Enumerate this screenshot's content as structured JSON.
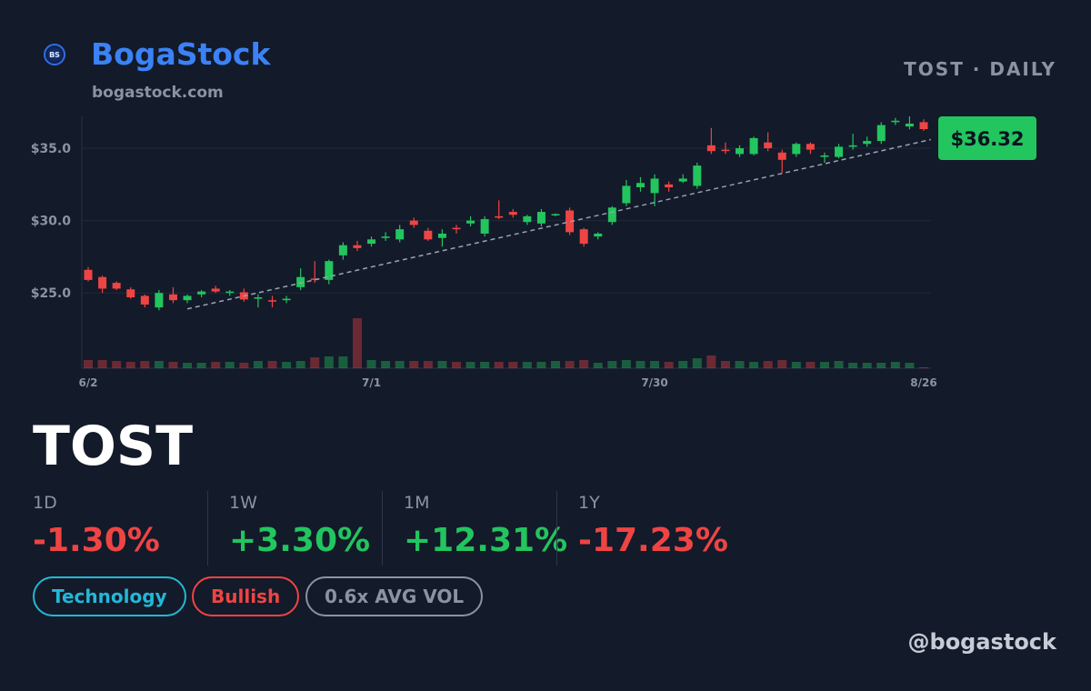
{
  "header": {
    "logo": "BS",
    "brand": "BogaStock",
    "url": "bogastock.com"
  },
  "chart_data": {
    "type": "candlestick",
    "title": "TOST · DAILY",
    "categories": [
      "6/2",
      null,
      null,
      null,
      null,
      null,
      null,
      null,
      null,
      null,
      null,
      null,
      null,
      null,
      null,
      null,
      null,
      null,
      null,
      null,
      "7/1",
      null,
      null,
      null,
      null,
      null,
      null,
      null,
      null,
      null,
      null,
      null,
      null,
      null,
      null,
      null,
      null,
      null,
      null,
      null,
      "7/30",
      null,
      null,
      null,
      null,
      null,
      null,
      null,
      null,
      null,
      null,
      null,
      null,
      null,
      null,
      null,
      null,
      null,
      null,
      "8/26"
    ],
    "open": [
      26.6,
      26.1,
      25.7,
      25.25,
      24.8,
      24.0,
      24.9,
      24.5,
      24.9,
      25.3,
      25.0,
      25.05,
      24.6,
      24.5,
      24.5,
      25.4,
      26.0,
      25.9,
      27.6,
      28.3,
      28.4,
      28.8,
      28.7,
      30.0,
      29.3,
      28.8,
      29.5,
      29.8,
      29.1,
      30.3,
      30.6,
      29.9,
      29.8,
      30.4,
      30.7,
      29.4,
      28.9,
      29.9,
      31.2,
      32.3,
      31.9,
      32.5,
      32.7,
      32.4,
      35.2,
      34.9,
      34.6,
      34.6,
      35.4,
      34.7,
      34.6,
      35.3,
      34.4,
      34.4,
      35.1,
      35.3,
      35.5,
      36.8,
      36.5,
      36.8
    ],
    "high": [
      26.8,
      26.2,
      25.8,
      25.4,
      24.9,
      25.2,
      25.4,
      24.9,
      25.2,
      25.5,
      25.2,
      25.3,
      24.9,
      24.8,
      24.8,
      26.7,
      27.2,
      27.3,
      28.5,
      28.6,
      28.9,
      29.2,
      29.7,
      30.2,
      29.5,
      29.4,
      29.7,
      30.3,
      30.3,
      31.4,
      30.8,
      30.4,
      30.8,
      30.5,
      30.9,
      29.5,
      29.2,
      31.0,
      32.8,
      33.0,
      33.2,
      32.7,
      33.2,
      34.0,
      36.4,
      35.4,
      35.2,
      35.8,
      36.1,
      34.9,
      35.4,
      35.4,
      34.7,
      35.3,
      36.0,
      35.8,
      36.8,
      37.1,
      37.2,
      37.0
    ],
    "low": [
      25.8,
      25.0,
      25.2,
      24.6,
      24.0,
      23.8,
      24.3,
      24.3,
      24.7,
      25.0,
      24.8,
      24.4,
      24.0,
      24.0,
      24.3,
      25.2,
      25.7,
      25.6,
      27.3,
      27.9,
      28.2,
      28.6,
      28.5,
      29.5,
      28.6,
      28.2,
      29.1,
      29.6,
      28.9,
      30.1,
      30.2,
      29.7,
      29.6,
      30.3,
      29.0,
      28.2,
      28.7,
      29.7,
      31.0,
      32.0,
      31.0,
      32.0,
      32.6,
      32.2,
      34.6,
      34.6,
      34.4,
      34.5,
      34.8,
      33.3,
      34.4,
      34.6,
      34.0,
      34.3,
      34.9,
      35.1,
      35.3,
      36.6,
      36.3,
      36.2
    ],
    "close": [
      25.9,
      25.3,
      25.3,
      24.7,
      24.2,
      25.0,
      24.5,
      24.8,
      25.1,
      25.1,
      25.1,
      24.55,
      24.7,
      24.4,
      24.6,
      26.1,
      25.9,
      27.2,
      28.3,
      28.1,
      28.7,
      28.9,
      29.4,
      29.7,
      28.7,
      29.1,
      29.4,
      30.0,
      30.1,
      30.2,
      30.4,
      30.3,
      30.6,
      30.45,
      29.2,
      28.4,
      29.1,
      30.9,
      32.4,
      32.6,
      32.9,
      32.3,
      32.9,
      33.8,
      34.8,
      34.8,
      35.0,
      35.7,
      35.0,
      34.2,
      35.3,
      34.9,
      34.5,
      35.1,
      35.2,
      35.5,
      36.6,
      36.9,
      36.7,
      36.32
    ],
    "volume": [
      9,
      9,
      8,
      7,
      8,
      8,
      7,
      6,
      6,
      7,
      7,
      6,
      8,
      8,
      7,
      8,
      12,
      13,
      13,
      55,
      9,
      8,
      8,
      8,
      8,
      8,
      7,
      7,
      7,
      7,
      7,
      7,
      7,
      8,
      8,
      9,
      6,
      8,
      9,
      8,
      8,
      7,
      8,
      11,
      14,
      8,
      8,
      7,
      8,
      9,
      7,
      7,
      7,
      8,
      6,
      6,
      6,
      7,
      6,
      1
    ],
    "up_color": "#22c55e",
    "down_color": "#ef4444",
    "ylim": [
      19.8,
      37.2
    ],
    "yticks": [
      {
        "value": 25,
        "label": "$25.0"
      },
      {
        "value": 30,
        "label": "$30.0"
      },
      {
        "value": 35,
        "label": "$35.0"
      }
    ],
    "grid": true,
    "trendline": [
      {
        "index": 7,
        "value": 23.9
      },
      {
        "index": 59.5,
        "value": 35.6
      }
    ],
    "last_price": {
      "value": 36.32,
      "label": "$36.32"
    }
  },
  "ticker": "TOST",
  "stats": [
    {
      "period": "1D",
      "change": "-1.30%",
      "color": "#ef4444"
    },
    {
      "period": "1W",
      "change": "+3.30%",
      "color": "#22c55e"
    },
    {
      "period": "1M",
      "change": "+12.31%",
      "color": "#22c55e"
    },
    {
      "period": "1Y",
      "change": "-17.23%",
      "color": "#ef4444"
    }
  ],
  "tags": [
    {
      "label": "Technology",
      "color": "#22b8d8"
    },
    {
      "label": "Bullish",
      "color": "#ef4444"
    },
    {
      "label": "0.6x AVG VOL",
      "color": "#8b93a3"
    }
  ],
  "handle": "@bogastock"
}
